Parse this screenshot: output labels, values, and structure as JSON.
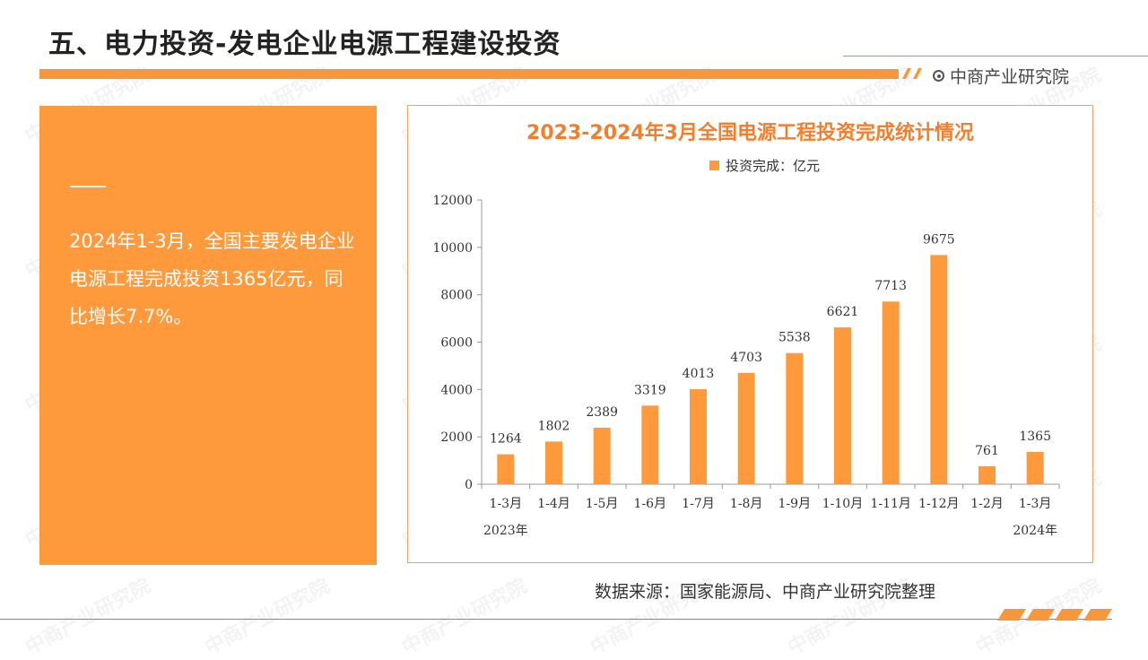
{
  "header": {
    "page_title": "五、电力投资-发电企业电源工程建设投资",
    "brand_name": "中商产业研究院",
    "accent_color": "#F7963A"
  },
  "summary": {
    "text": "2024年1-3月，全国主要发电企业电源工程完成投资1365亿元，同比增长7.7%。",
    "panel_color": "#FF9A3C"
  },
  "watermark": "中商产业研究院",
  "chart_data": {
    "type": "bar",
    "title": "2023-2024年3月全国电源工程投资完成统计情况",
    "series": [
      {
        "name": "投资完成：亿元",
        "color": "#FF9A3C",
        "values": [
          1264,
          1802,
          2389,
          3319,
          4013,
          4703,
          5538,
          6621,
          7713,
          9675,
          761,
          1365
        ]
      }
    ],
    "categories": [
      "1-3月",
      "1-4月",
      "1-5月",
      "1-6月",
      "1-7月",
      "1-8月",
      "1-9月",
      "1-10月",
      "1-11月",
      "1-12月",
      "1-2月",
      "1-3月"
    ],
    "year_labels": [
      {
        "index": 0,
        "text": "2023年"
      },
      {
        "index": 11,
        "text": "2024年"
      }
    ],
    "yticks": [
      0,
      2000,
      4000,
      6000,
      8000,
      10000,
      12000
    ],
    "ylim": [
      0,
      12000
    ],
    "legend_position": "top-center",
    "grid": false,
    "data_labels": true
  },
  "footer": {
    "source": "数据来源：国家能源局、中商产业研究院整理"
  }
}
